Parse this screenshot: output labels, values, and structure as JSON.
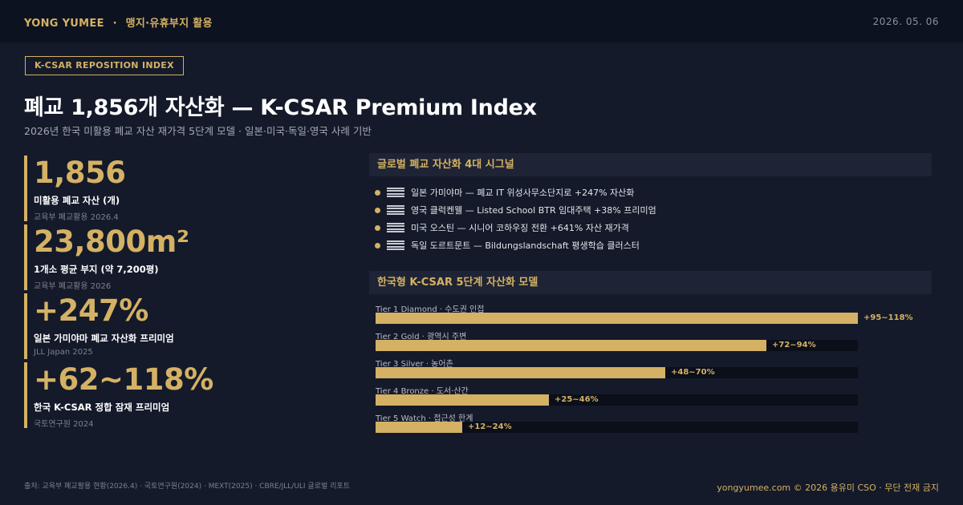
{
  "header": {
    "brand": "YONG YUMEE",
    "separator": "·",
    "section": "맹지·유휴부지 활용",
    "date": "2026. 05. 06"
  },
  "tag": "K-CSAR REPOSITION INDEX",
  "title": "폐교 1,856개 자산화 — K-CSAR Premium Index",
  "subtitle": "2026년 한국 미활용 폐교 자산 재가격 5단계 모델 · 일본·미국·독일·영국 사례 기반",
  "stats": [
    {
      "value": "1,856",
      "label": "미활용 폐교 자산 (개)",
      "source": "교육부 폐교활용 2026.4"
    },
    {
      "value": "23,800m²",
      "label": "1개소 평균 부지 (약 7,200평)",
      "source": "교육부 폐교활용 2026"
    },
    {
      "value": "+247%",
      "label": "일본 가미야마 폐교 자산화 프리미엄",
      "source": "JLL Japan 2025"
    },
    {
      "value": "+62~118%",
      "label": "한국 K-CSAR 정합 잠재 프리미엄",
      "source": "국토연구원 2024"
    }
  ],
  "signals": {
    "heading": "글로벌 폐교 자산화 4대 시그널",
    "items": [
      "일본 가미야마 — 폐교 IT 위성사무소단지로 +247% 자산화",
      "영국 클럭켄웰 — Listed School BTR 임대주택 +38% 프리미엄",
      "미국 오스틴 — 시니어 코하우징 전환 +641% 자산 재가격",
      "독일 도르트문트 — Bildungslandschaft 평생학습 클러스터"
    ]
  },
  "model": {
    "heading": "한국형 K-CSAR 5단계 자산화 모델",
    "tiers": [
      {
        "label": "Tier 1 Diamond · 수도권 인접",
        "value": "+95~118%",
        "level": 1.0
      },
      {
        "label": "Tier 2 Gold · 광역시 주변",
        "value": "+72~94%",
        "level": 0.81
      },
      {
        "label": "Tier 3 Silver · 농어촌",
        "value": "+48~70%",
        "level": 0.6
      },
      {
        "label": "Tier 4 Bronze · 도서·산간",
        "value": "+25~46%",
        "level": 0.36
      },
      {
        "label": "Tier 5 Watch · 접근성 한계",
        "value": "+12~24%",
        "level": 0.18
      }
    ]
  },
  "footer": {
    "sources": "출처: 교육부 폐교활용 현황(2026.4) · 국토연구원(2024) · MEXT(2025) · CBRE/JLL/ULI 글로벌 리포트",
    "copyright": "yongyumee.com  ©  2026 용유미 CSO  ·  무단 전재 금지"
  },
  "colors": {
    "background": "#141a2a",
    "topbar": "#0d1220",
    "accent": "#d4b164",
    "panel": "#1e2435"
  }
}
